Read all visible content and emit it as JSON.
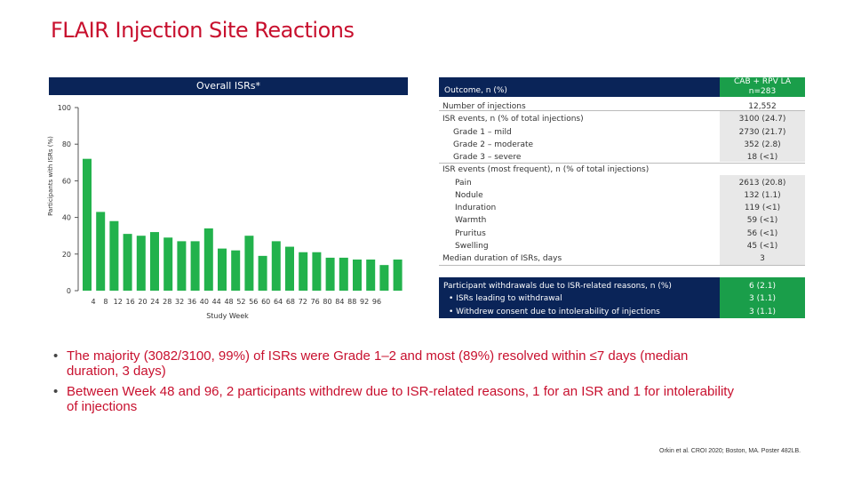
{
  "title": "FLAIR Injection Site Reactions",
  "colors": {
    "title": "#c8102e",
    "navy": "#0a2458",
    "green": "#1a9e4a",
    "bar": "#22b24c",
    "grey": "#e8e8e8"
  },
  "chart_data": {
    "type": "bar",
    "title": "Overall ISRs*",
    "xlabel": "Study Week",
    "ylabel": "Participants with ISRs (%)",
    "ylim": [
      0,
      100
    ],
    "yticks": [
      "0",
      "20",
      "40",
      "60",
      "80",
      "100"
    ],
    "xtick_labels": [
      "4",
      "8",
      "12",
      "16",
      "20",
      "24",
      "28",
      "32",
      "36",
      "40",
      "44",
      "48",
      "52",
      "56",
      "60",
      "64",
      "68",
      "72",
      "76",
      "80",
      "84",
      "88",
      "92",
      "96"
    ],
    "categories": [
      "4",
      "8",
      "12",
      "16",
      "20",
      "24",
      "28",
      "32",
      "36",
      "40",
      "44",
      "48",
      "52",
      "56",
      "60",
      "64",
      "68",
      "72",
      "76",
      "80",
      "84",
      "88",
      "92",
      "96"
    ],
    "values": [
      72,
      43,
      38,
      31,
      30,
      32,
      29,
      27,
      27,
      34,
      23,
      22,
      30,
      19,
      27,
      24,
      21,
      21,
      18,
      18,
      17,
      17,
      14,
      17
    ]
  },
  "table": {
    "header_left": "Outcome, n (%)",
    "header_right_line1": "CAB + RPV LA",
    "header_right_line2": "n=283",
    "rows": [
      {
        "label": "Number of injections",
        "value": "12,552"
      },
      {
        "label": "ISR events, n (% of total injections)",
        "value": "3100 (24.7)"
      },
      {
        "label": "Grade 1 – mild",
        "value": "2730 (21.7)"
      },
      {
        "label": "Grade 2 – moderate",
        "value": "352 (2.8)"
      },
      {
        "label": "Grade 3 – severe",
        "value": "18 (<1)"
      },
      {
        "label": "ISR events (most frequent), n (% of total injections)",
        "value": ""
      },
      {
        "label": "Pain",
        "value": "2613 (20.8)"
      },
      {
        "label": "Nodule",
        "value": "132 (1.1)"
      },
      {
        "label": "Induration",
        "value": "119 (<1)"
      },
      {
        "label": "Warmth",
        "value": "59 (<1)"
      },
      {
        "label": "Pruritus",
        "value": "56 (<1)"
      },
      {
        "label": "Swelling",
        "value": "45 (<1)"
      },
      {
        "label": "Median duration of ISRs, days",
        "value": "3"
      }
    ],
    "withdrawals": [
      {
        "label": "Participant withdrawals due to ISR-related reasons, n (%)",
        "value": "6 (2.1)"
      },
      {
        "label": "• ISRs leading to withdrawal",
        "value": "3 (1.1)"
      },
      {
        "label": "• Withdrew consent due to intolerability of injections",
        "value": "3 (1.1)"
      }
    ]
  },
  "bullets": [
    "The majority (3082/3100, 99%) of ISRs were Grade 1–2 and most (89%) resolved within ≤7 days (median duration, 3 days)",
    "Between Week 48 and 96, 2 participants withdrew due to ISR-related reasons, 1 for an ISR and 1 for intolerability of injections"
  ],
  "bullet_symbol": "•",
  "reference": "Orkin et al. CROI 2020; Boston, MA. Poster 482LB."
}
